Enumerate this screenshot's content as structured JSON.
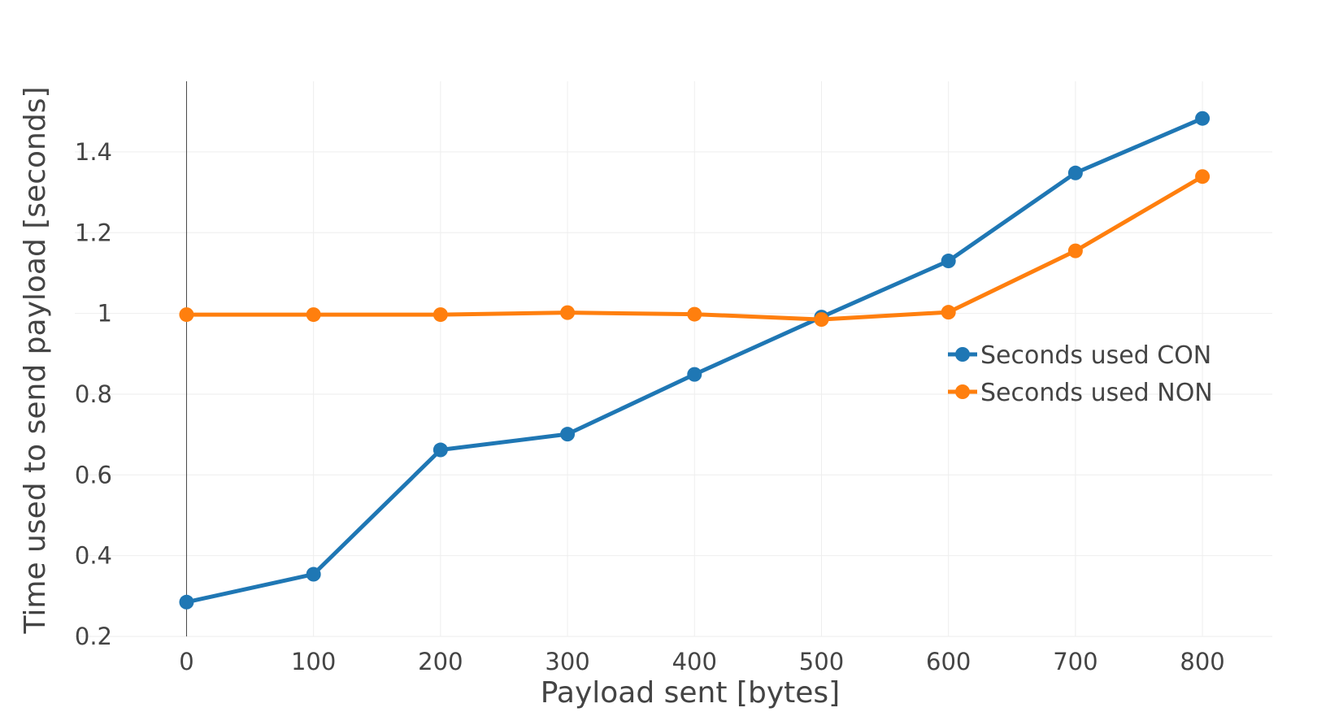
{
  "chart_data": {
    "type": "line",
    "title": "",
    "xlabel": "Payload sent [bytes]",
    "ylabel": "Time used to send payload [seconds]",
    "x": [
      0,
      100,
      200,
      300,
      400,
      500,
      600,
      700,
      800
    ],
    "xticks": [
      0,
      100,
      200,
      300,
      400,
      500,
      600,
      700,
      800
    ],
    "xtick_labels": [
      "0",
      "100",
      "200",
      "300",
      "400",
      "500",
      "600",
      "700",
      "800"
    ],
    "yticks": [
      0.2,
      0.4,
      0.6,
      0.8,
      1,
      1.2,
      1.4
    ],
    "ytick_labels": [
      "0.2",
      "0.4",
      "0.6",
      "0.8",
      "1",
      "1.2",
      "1.4"
    ],
    "xlim": [
      -88,
      855
    ],
    "ylim": [
      0.2,
      1.575
    ],
    "grid": true,
    "legend_position": "right-middle",
    "series": [
      {
        "name": "Seconds used CON",
        "color": "#1f77b4",
        "values": [
          0.285,
          0.354,
          0.662,
          0.701,
          0.849,
          0.991,
          1.13,
          1.348,
          1.483
        ]
      },
      {
        "name": "Seconds used NON",
        "color": "#ff7f0e",
        "values": [
          0.997,
          0.997,
          0.997,
          1.002,
          0.998,
          0.985,
          1.003,
          1.155,
          1.339
        ]
      }
    ]
  }
}
